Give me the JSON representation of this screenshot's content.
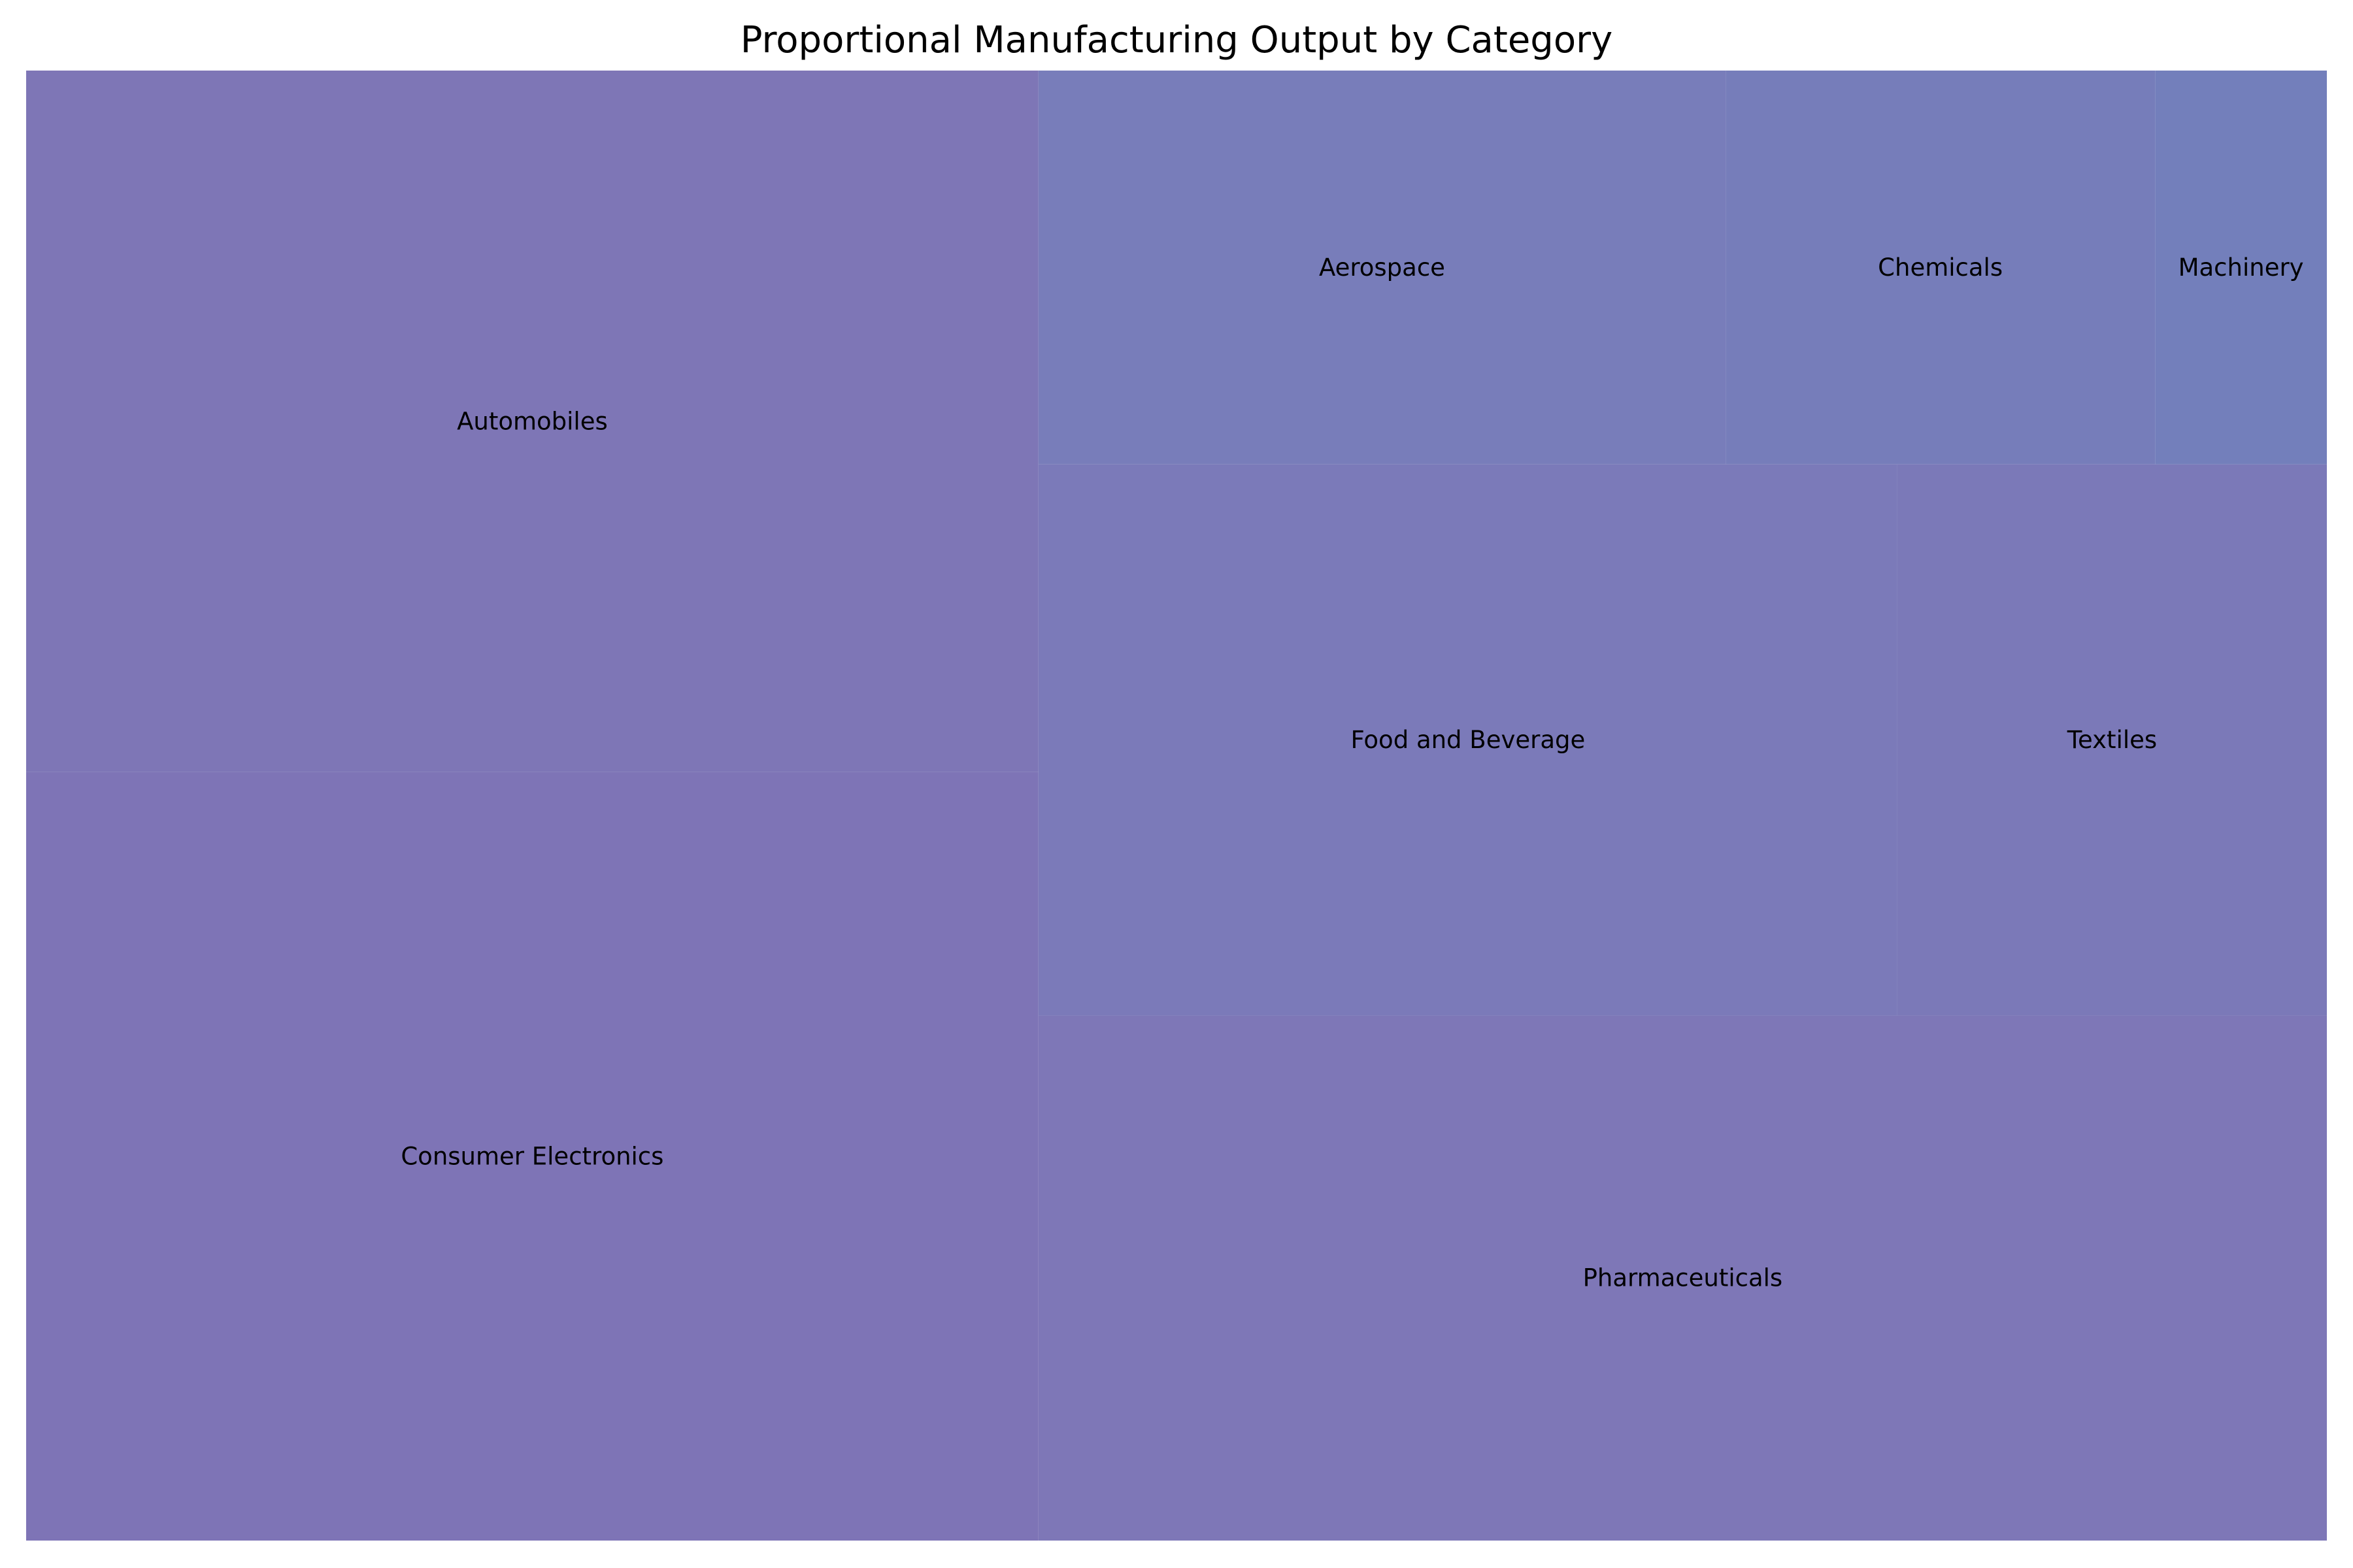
{
  "chart_data": {
    "type": "treemap",
    "title": "Proportional Manufacturing Output by Category",
    "items": [
      {
        "name": "Automobiles",
        "value": 21,
        "color": "#7e76b6"
      },
      {
        "name": "Consumer Electronics",
        "value": 23,
        "color": "#7e74b6"
      },
      {
        "name": "Aerospace",
        "value": 8,
        "color": "#787dba"
      },
      {
        "name": "Chemicals",
        "value": 5,
        "color": "#767dba"
      },
      {
        "name": "Machinery",
        "value": 2,
        "color": "#737fbb"
      },
      {
        "name": "Food and Beverage",
        "value": 14,
        "color": "#7b7ab9"
      },
      {
        "name": "Textiles",
        "value": 7,
        "color": "#7b79b8"
      },
      {
        "name": "Pharmaceuticals",
        "value": 20,
        "color": "#7e77b7"
      }
    ]
  }
}
